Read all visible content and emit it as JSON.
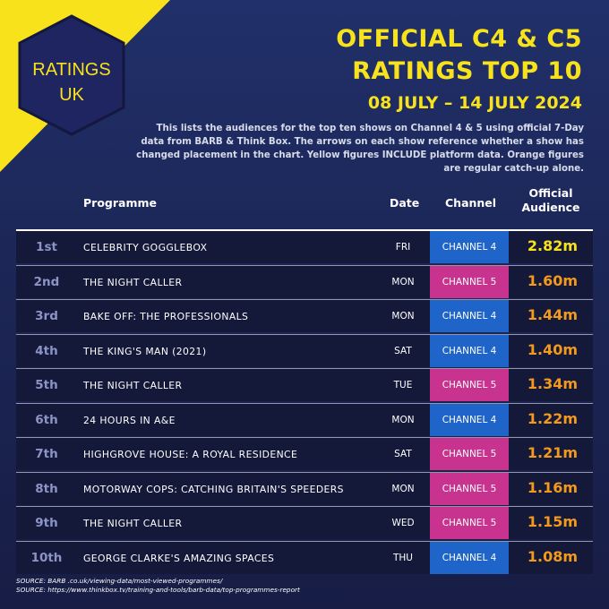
{
  "brand": {
    "line1": "RATINGS",
    "line2": "UK",
    "accent": "#f7e21b",
    "hex_fill": "#1f2560"
  },
  "header": {
    "title_line1": "OFFICIAL C4 & C5",
    "title_line2": "RATINGS TOP 10",
    "date_range": "08 JULY – 14 JULY 2024",
    "description": "This lists the audiences for the top ten shows on Channel 4 & 5 using official 7-Day data from BARB & Think Box. The arrows on each show reference whether a show has changed placement in the chart. Yellow figures INCLUDE platform data. Orange figures are regular catch-up alone."
  },
  "table": {
    "columns": {
      "programme": "Programme",
      "date": "Date",
      "channel": "Channel",
      "audience_line1": "Official",
      "audience_line2": "Audience"
    },
    "colors": {
      "channel4": "#1f64c8",
      "channel5": "#c8338f",
      "yellow": "#f7e21b",
      "orange": "#f39a1d"
    },
    "rows": [
      {
        "rank": "1st",
        "programme": "CELEBRITY GOGGLEBOX",
        "day": "FRI",
        "channel": "CHANNEL 4",
        "audience": "2.82m",
        "figure_color": "yellow"
      },
      {
        "rank": "2nd",
        "programme": "THE NIGHT CALLER",
        "day": "MON",
        "channel": "CHANNEL 5",
        "audience": "1.60m",
        "figure_color": "orange"
      },
      {
        "rank": "3rd",
        "programme": "BAKE OFF: THE PROFESSIONALS",
        "day": "MON",
        "channel": "CHANNEL 4",
        "audience": "1.44m",
        "figure_color": "orange"
      },
      {
        "rank": "4th",
        "programme": "THE KING'S MAN (2021)",
        "day": "SAT",
        "channel": "CHANNEL 4",
        "audience": "1.40m",
        "figure_color": "orange"
      },
      {
        "rank": "5th",
        "programme": "THE NIGHT CALLER",
        "day": "TUE",
        "channel": "CHANNEL 5",
        "audience": "1.34m",
        "figure_color": "orange"
      },
      {
        "rank": "6th",
        "programme": "24 HOURS IN A&E",
        "day": "MON",
        "channel": "CHANNEL 4",
        "audience": "1.22m",
        "figure_color": "orange"
      },
      {
        "rank": "7th",
        "programme": "HIGHGROVE HOUSE: A ROYAL RESIDENCE",
        "day": "SAT",
        "channel": "CHANNEL 5",
        "audience": "1.21m",
        "figure_color": "orange"
      },
      {
        "rank": "8th",
        "programme": "MOTORWAY COPS: CATCHING BRITAIN'S SPEEDERS",
        "day": "MON",
        "channel": "CHANNEL 5",
        "audience": "1.16m",
        "figure_color": "orange"
      },
      {
        "rank": "9th",
        "programme": "THE NIGHT CALLER",
        "day": "WED",
        "channel": "CHANNEL 5",
        "audience": "1.15m",
        "figure_color": "orange"
      },
      {
        "rank": "10th",
        "programme": "GEORGE CLARKE'S AMAZING SPACES",
        "day": "THU",
        "channel": "CHANNEL 4",
        "audience": "1.08m",
        "figure_color": "orange"
      }
    ]
  },
  "sources": {
    "line1": "SOURCE: BARB .co.uk/viewing-data/most-viewed-programmes/",
    "line2": "SOURCE: https://www.thinkbox.tv/training-and-tools/barb-data/top-programmes-report"
  }
}
